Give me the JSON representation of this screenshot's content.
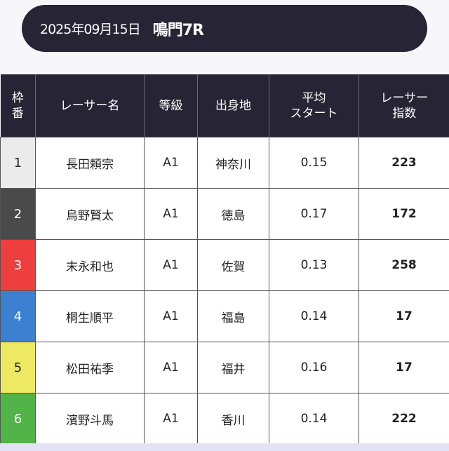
{
  "header": {
    "date": "2025年09月15日",
    "race": "鳴門7R"
  },
  "table": {
    "columns": [
      "枠\n番",
      "レーサー名",
      "等級",
      "出身地",
      "平均\nスタート",
      "レーサー\n指数"
    ],
    "rows": [
      {
        "waku": "1",
        "name": "長田頼宗",
        "grade": "A1",
        "origin": "神奈川",
        "start": "0.15",
        "index": "223",
        "bg": "#ebebeb",
        "fg": "#222222"
      },
      {
        "waku": "2",
        "name": "烏野賢太",
        "grade": "A1",
        "origin": "徳島",
        "start": "0.17",
        "index": "172",
        "bg": "#4a4a4a",
        "fg": "#ffffff"
      },
      {
        "waku": "3",
        "name": "末永和也",
        "grade": "A1",
        "origin": "佐賀",
        "start": "0.13",
        "index": "258",
        "bg": "#ee3f3f",
        "fg": "#ffffff"
      },
      {
        "waku": "4",
        "name": "桐生順平",
        "grade": "A1",
        "origin": "福島",
        "start": "0.14",
        "index": "17",
        "bg": "#3d80d2",
        "fg": "#ffffff"
      },
      {
        "waku": "5",
        "name": "松田祐季",
        "grade": "A1",
        "origin": "福井",
        "start": "0.16",
        "index": "17",
        "bg": "#ede963",
        "fg": "#222222"
      },
      {
        "waku": "6",
        "name": "濱野斗馬",
        "grade": "A1",
        "origin": "香川",
        "start": "0.14",
        "index": "222",
        "bg": "#52b448",
        "fg": "#ffffff"
      }
    ]
  }
}
